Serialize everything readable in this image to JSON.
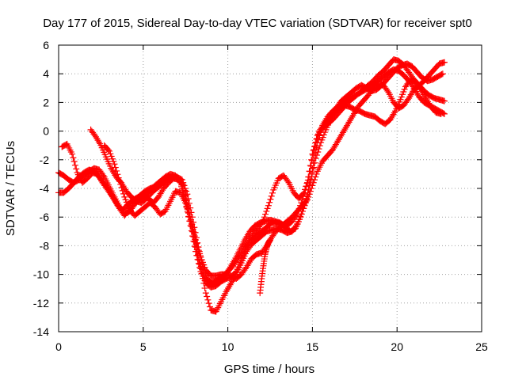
{
  "chart_data": {
    "type": "scatter",
    "title": "Day 177 of 2015, Sidereal Day-to-day VTEC variation (SDTVAR) for receiver spt0",
    "xlabel": "GPS time / hours",
    "ylabel": "SDTVAR / TECUs",
    "xlim": [
      0,
      25
    ],
    "ylim": [
      -14,
      6
    ],
    "xticks": [
      0,
      5,
      10,
      15,
      20,
      25
    ],
    "yticks": [
      -14,
      -12,
      -10,
      -8,
      -6,
      -4,
      -2,
      0,
      2,
      4,
      6
    ],
    "grid": true,
    "marker": "+",
    "color": "#ff0000",
    "series": [
      {
        "x": [
          0.0,
          0.3,
          0.6,
          0.9,
          1.2,
          1.5,
          1.8,
          2.1,
          2.4,
          2.7,
          3.0,
          3.3,
          3.6,
          3.9,
          4.2,
          4.5,
          4.8,
          5.1,
          5.4,
          5.7,
          6.0,
          6.3,
          6.6,
          6.9,
          7.2,
          7.5,
          7.8,
          8.1,
          8.4,
          8.7,
          9.0,
          9.3,
          9.6,
          9.9,
          10.2,
          10.5,
          10.8,
          11.1,
          11.4,
          11.7,
          12.0,
          12.3,
          12.6,
          12.9,
          13.2,
          13.5,
          13.8,
          14.1,
          14.4,
          14.7,
          15.0,
          15.3,
          15.6,
          15.9,
          16.2,
          16.5,
          16.8,
          17.1,
          17.4,
          17.7,
          18.0,
          18.3,
          18.6,
          18.9,
          19.2,
          19.5,
          19.8,
          20.1,
          20.4,
          20.7,
          21.0,
          21.3,
          21.6,
          21.9,
          22.2,
          22.5,
          22.8
        ],
        "values": [
          -4.3,
          -4.3,
          -4.0,
          -3.6,
          -3.2,
          -2.9,
          -2.7,
          -2.8,
          -3.2,
          -3.7,
          -4.2,
          -4.8,
          -5.4,
          -5.9,
          -5.4,
          -4.9,
          -4.5,
          -4.2,
          -4.0,
          -3.9,
          -3.7,
          -3.5,
          -3.3,
          -3.2,
          -3.6,
          -5.0,
          -6.6,
          -8.4,
          -9.8,
          -10.6,
          -10.9,
          -10.8,
          -10.5,
          -10.3,
          -10.2,
          -9.8,
          -9.0,
          -8.1,
          -7.6,
          -7.3,
          -7.0,
          -6.7,
          -6.4,
          -6.4,
          -6.5,
          -6.6,
          -6.3,
          -5.8,
          -4.8,
          -3.6,
          -1.6,
          -0.3,
          0.2,
          0.5,
          0.8,
          1.2,
          1.6,
          2.0,
          2.3,
          2.6,
          2.9,
          3.2,
          3.5,
          3.9,
          4.2,
          4.6,
          5.0,
          4.9,
          4.6,
          4.1,
          3.6,
          3.2,
          2.8,
          2.5,
          2.3,
          2.2,
          2.1
        ]
      },
      {
        "x": [
          0.0,
          0.3,
          0.6,
          0.9,
          1.2,
          1.5,
          1.8,
          2.1,
          2.4,
          2.7,
          3.0,
          3.3,
          3.6,
          3.9,
          4.2,
          4.5,
          4.8,
          5.1,
          5.4,
          5.7,
          6.0,
          6.3,
          6.6,
          6.9,
          7.2,
          7.5,
          7.8,
          8.1,
          8.4,
          8.7,
          9.0,
          9.3,
          9.6,
          9.9,
          10.2,
          10.5,
          10.8,
          11.1,
          11.4,
          11.7,
          12.0,
          12.3,
          12.6,
          12.9,
          13.2,
          13.5,
          13.8,
          14.1,
          14.4,
          14.7,
          15.0,
          15.3,
          15.6,
          15.9,
          16.2,
          16.5,
          16.8,
          17.1,
          17.4,
          17.7,
          18.0,
          18.3,
          18.6,
          18.9,
          19.2,
          19.5,
          19.8,
          20.1,
          20.4,
          20.7,
          21.0,
          21.3,
          21.6,
          21.9,
          22.2,
          22.5,
          22.8
        ],
        "values": [
          -2.9,
          -3.1,
          -3.4,
          -3.6,
          -3.4,
          -3.1,
          -2.8,
          -2.6,
          -2.7,
          -3.2,
          -3.9,
          -4.6,
          -5.3,
          -5.8,
          -5.6,
          -5.1,
          -4.7,
          -4.4,
          -4.1,
          -3.8,
          -3.5,
          -3.2,
          -3.0,
          -3.1,
          -3.5,
          -4.8,
          -6.3,
          -8.1,
          -9.6,
          -11.3,
          -12.5,
          -12.6,
          -11.9,
          -11.2,
          -10.6,
          -10.0,
          -9.2,
          -8.4,
          -7.9,
          -7.6,
          -7.3,
          -7.0,
          -6.9,
          -6.8,
          -6.9,
          -7.1,
          -7.0,
          -6.5,
          -5.6,
          -4.5,
          -2.6,
          -0.8,
          0.4,
          1.0,
          1.4,
          1.7,
          2.0,
          2.2,
          2.4,
          2.6,
          2.8,
          3.0,
          3.3,
          3.5,
          3.8,
          4.1,
          4.3,
          4.2,
          3.9,
          3.5,
          3.0,
          2.4,
          2.0,
          1.8,
          1.6,
          1.4,
          1.2
        ]
      },
      {
        "x": [
          0.2,
          0.5,
          0.8,
          1.1,
          1.4,
          1.7,
          2.0,
          2.3,
          2.6,
          2.9,
          3.2,
          3.5,
          3.8,
          4.1,
          4.4,
          4.7,
          5.0,
          5.3,
          5.6,
          5.9,
          6.2,
          6.5,
          6.8,
          7.1,
          7.4,
          7.7,
          8.0,
          8.3,
          8.6,
          8.9,
          9.2,
          9.5,
          9.8,
          10.1,
          10.4,
          10.7,
          11.0,
          11.3,
          11.6,
          11.9,
          12.2,
          12.5,
          12.8,
          13.1,
          13.4,
          13.7,
          14.0,
          14.3,
          14.6,
          14.9,
          15.2,
          15.5,
          15.8,
          16.1,
          16.4,
          16.7,
          17.0,
          17.3,
          17.6,
          17.9,
          18.2,
          18.5,
          18.8,
          19.1,
          19.4,
          19.7,
          20.0,
          20.3,
          20.6,
          20.9,
          21.2,
          21.5,
          21.8,
          22.1,
          22.4,
          22.7
        ],
        "values": [
          -1.1,
          -0.9,
          -1.6,
          -2.9,
          -3.6,
          -3.3,
          -2.9,
          -3.0,
          -3.6,
          -4.1,
          -4.6,
          -5.2,
          -5.5,
          -5.1,
          -4.8,
          -4.6,
          -4.5,
          -4.7,
          -5.0,
          -4.6,
          -4.0,
          -3.6,
          -3.3,
          -3.4,
          -3.8,
          -5.5,
          -7.2,
          -9.0,
          -10.1,
          -10.6,
          -10.5,
          -10.3,
          -10.1,
          -9.6,
          -9.0,
          -8.3,
          -7.6,
          -7.0,
          -6.6,
          -6.4,
          -6.3,
          -6.2,
          -6.3,
          -6.4,
          -6.7,
          -7.0,
          -6.8,
          -6.0,
          -5.0,
          -3.5,
          -1.9,
          -0.8,
          0.1,
          0.9,
          1.6,
          2.1,
          2.4,
          2.7,
          3.0,
          3.2,
          3.0,
          2.8,
          2.9,
          3.2,
          3.6,
          4.0,
          4.4,
          4.6,
          4.7,
          4.5,
          4.1,
          3.7,
          3.5,
          3.6,
          3.8,
          4.0
        ]
      },
      {
        "x": [
          1.9,
          2.2,
          2.5,
          2.8,
          3.1,
          3.4,
          3.7,
          4.0,
          4.3,
          4.6,
          4.9,
          5.2,
          5.5,
          5.8,
          6.1,
          6.4,
          6.7,
          7.0,
          7.3,
          7.6,
          7.9,
          8.2,
          8.5,
          8.8,
          9.1,
          9.4,
          9.7,
          10.0,
          10.3,
          10.6,
          10.9,
          11.2,
          11.5,
          11.8,
          12.1,
          12.4,
          12.7,
          13.0,
          13.3,
          13.6,
          13.9,
          14.2,
          14.5,
          14.8,
          15.1,
          15.4,
          15.7,
          16.0,
          16.3,
          16.6,
          16.9,
          17.2,
          17.5,
          17.8,
          18.1,
          18.4,
          18.7,
          19.0,
          19.3,
          19.6,
          19.9,
          20.2,
          20.5,
          20.8,
          21.1,
          21.4,
          21.7,
          22.0,
          22.3,
          22.6
        ],
        "values": [
          0.1,
          -0.4,
          -1.0,
          -1.8,
          -2.6,
          -3.2,
          -3.6,
          -4.2,
          -4.6,
          -4.9,
          -5.0,
          -4.7,
          -4.3,
          -4.0,
          -3.7,
          -3.4,
          -3.2,
          -3.2,
          -3.4,
          -4.4,
          -6.0,
          -7.8,
          -9.3,
          -10.3,
          -10.7,
          -10.5,
          -10.2,
          -9.8,
          -9.4,
          -8.9,
          -8.3,
          -7.7,
          -7.2,
          -6.8,
          -6.2,
          -5.2,
          -4.1,
          -3.3,
          -3.1,
          -3.6,
          -4.3,
          -4.7,
          -4.3,
          -3.2,
          -1.3,
          0.0,
          0.5,
          0.9,
          1.3,
          1.6,
          1.8,
          1.7,
          1.5,
          1.4,
          1.2,
          1.1,
          1.0,
          0.7,
          0.5,
          0.8,
          1.4,
          2.2,
          3.1,
          3.6,
          3.4,
          2.9,
          2.3,
          1.7,
          1.3,
          1.2
        ]
      },
      {
        "x": [
          2.7,
          3.0,
          3.3,
          3.6,
          3.9,
          4.2,
          4.5,
          4.8,
          5.1,
          5.4,
          5.7,
          6.0,
          6.3,
          6.6,
          6.9,
          7.2,
          7.5,
          7.8,
          8.1,
          8.4,
          8.7,
          9.0,
          9.3,
          9.6,
          9.9,
          10.2,
          10.5,
          10.8,
          11.1,
          11.4,
          11.7,
          12.0,
          12.3,
          12.6,
          12.9,
          13.2,
          13.5,
          13.8,
          14.1,
          14.4,
          14.7,
          15.0,
          15.3,
          15.6,
          15.9,
          16.2,
          16.5,
          16.8,
          17.1,
          17.4,
          17.7,
          18.0,
          18.3,
          18.6,
          18.9,
          19.2,
          19.5,
          19.8,
          20.1,
          20.4,
          20.7,
          21.0,
          21.3,
          21.6,
          21.9,
          22.2,
          22.5,
          22.8
        ],
        "values": [
          -1.0,
          -1.4,
          -2.3,
          -3.5,
          -4.6,
          -5.5,
          -5.9,
          -5.6,
          -5.3,
          -5.0,
          -5.3,
          -5.8,
          -5.6,
          -4.9,
          -4.2,
          -4.3,
          -5.0,
          -6.2,
          -7.6,
          -8.8,
          -9.7,
          -10.1,
          -10.1,
          -10.0,
          -10.0,
          -10.1,
          -10.3,
          -10.0,
          -9.5,
          -8.9,
          -8.6,
          -8.5,
          -8.0,
          -7.4,
          -6.9,
          -6.6,
          -6.3,
          -6.0,
          -5.6,
          -5.2,
          -4.8,
          -3.8,
          -2.8,
          -2.1,
          -1.7,
          -1.3,
          -0.7,
          -0.1,
          0.5,
          1.1,
          1.7,
          2.1,
          2.5,
          3.0,
          3.3,
          3.2,
          2.7,
          2.0,
          1.6,
          1.8,
          2.3,
          2.9,
          3.2,
          3.5,
          3.9,
          4.3,
          4.7,
          4.8
        ]
      },
      {
        "x": [
          11.9,
          12.0,
          12.1,
          12.2,
          12.3,
          12.4,
          12.5
        ],
        "values": [
          -11.3,
          -10.3,
          -9.4,
          -8.6,
          -8.1,
          -7.8,
          -7.6
        ]
      }
    ]
  }
}
